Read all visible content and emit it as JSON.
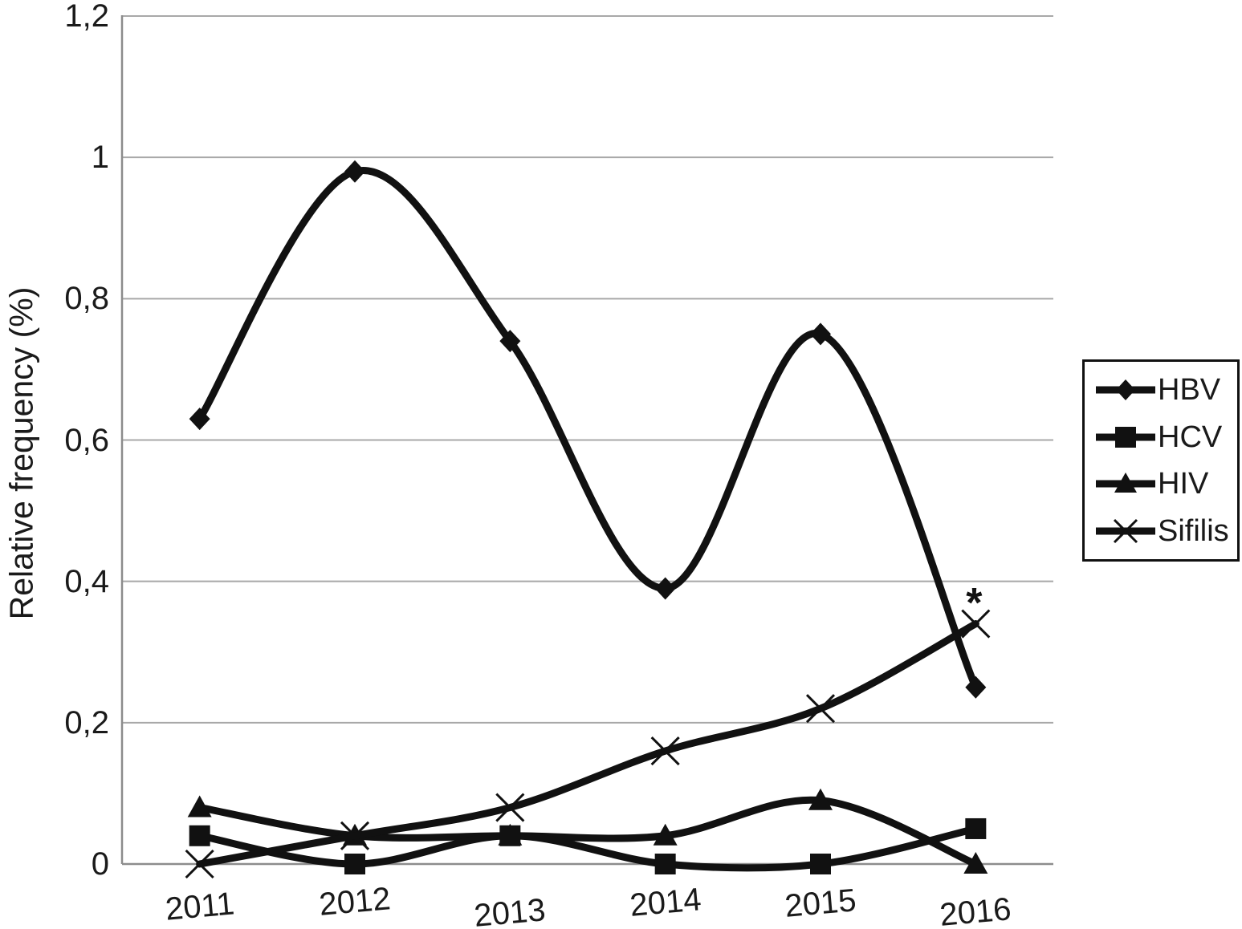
{
  "figure": {
    "background": "#ffffff",
    "text_color": "#1a1a1a",
    "annotation_star": "*"
  },
  "chart_data": {
    "type": "line",
    "title": "",
    "xlabel": "",
    "ylabel": "Relative frequency (%)",
    "categories": [
      "2011",
      "2012",
      "2013",
      "2014",
      "2015",
      "2016"
    ],
    "series": [
      {
        "name": "HBV",
        "marker": "diamond",
        "values": [
          0.63,
          0.98,
          0.74,
          0.39,
          0.75,
          0.25
        ]
      },
      {
        "name": "HCV",
        "marker": "square",
        "values": [
          0.04,
          0.0,
          0.04,
          0.0,
          0.0,
          0.05
        ]
      },
      {
        "name": "HIV",
        "marker": "triangle",
        "values": [
          0.08,
          0.04,
          0.04,
          0.04,
          0.09,
          0.0
        ]
      },
      {
        "name": "Sifilis",
        "marker": "x",
        "values": [
          0.0,
          0.04,
          0.08,
          0.16,
          0.22,
          0.34
        ]
      }
    ],
    "ylim": [
      0,
      1.2
    ],
    "ytick_values": [
      0,
      0.2,
      0.4,
      0.6,
      0.8,
      1.0,
      1.2
    ],
    "yticks": [
      "0",
      "0,2",
      "0,4",
      "0,6",
      "0,8",
      "1",
      "1,2"
    ],
    "decimal_separator": ",",
    "grid": true,
    "smooth": true,
    "legend_position": "right",
    "line_color": "#111111",
    "grid_color": "#a8a8a8",
    "axis_color": "#8c8c8c",
    "annotation": {
      "text": "*",
      "series": "Sifilis",
      "category": "2016"
    }
  }
}
